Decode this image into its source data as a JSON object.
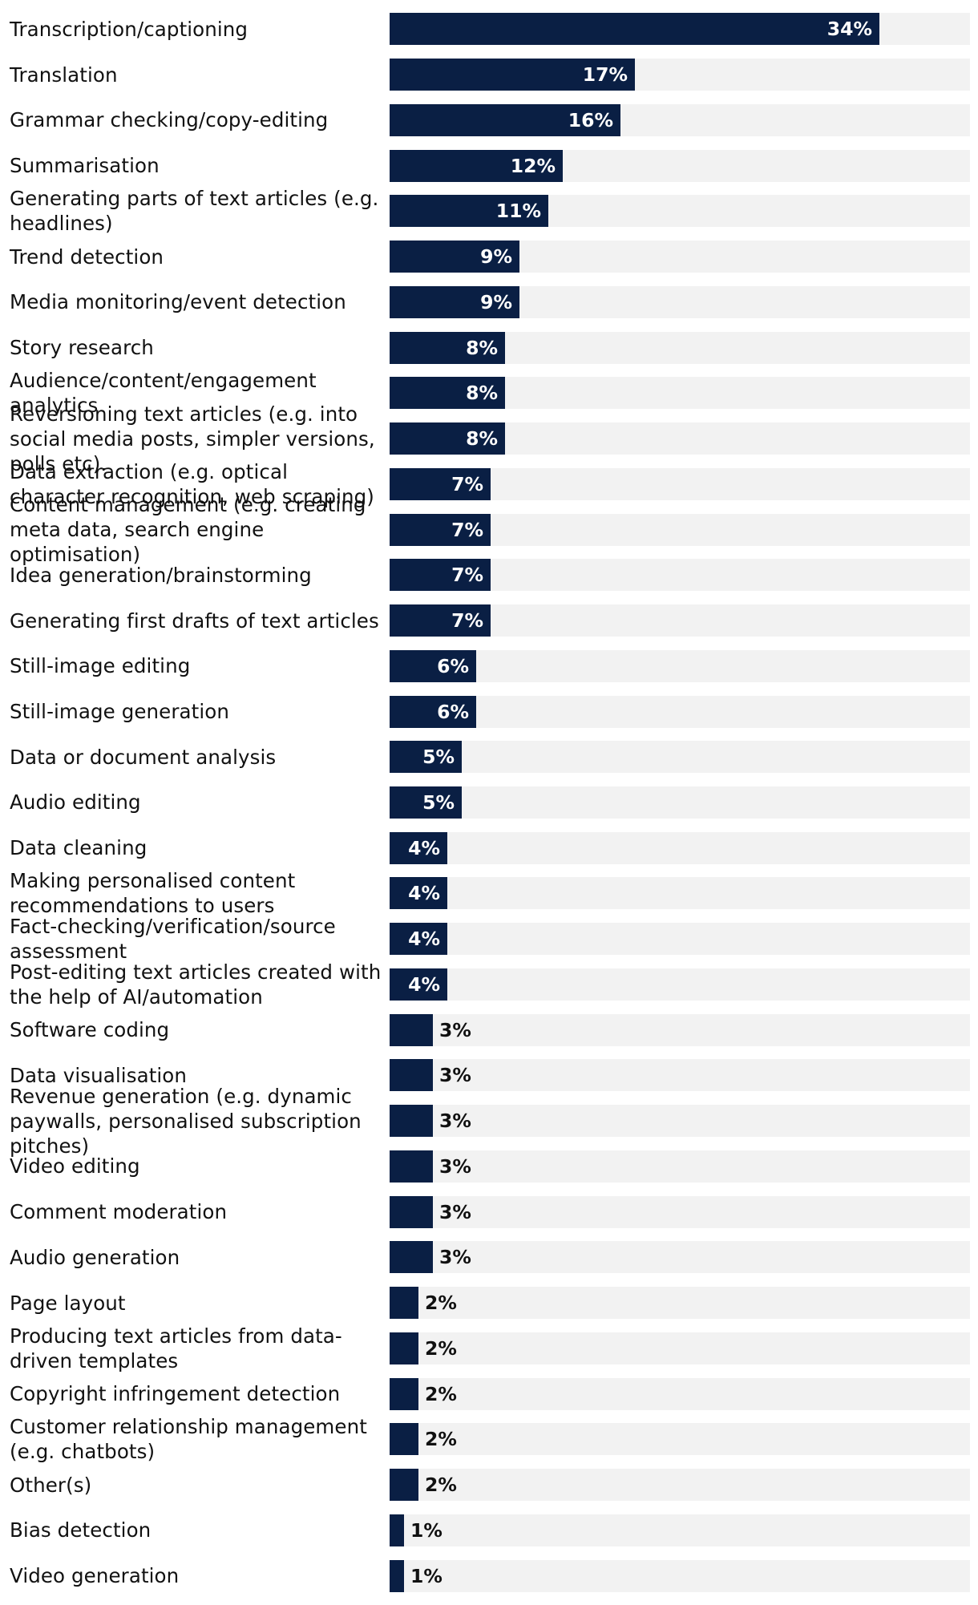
{
  "chart_data": {
    "type": "bar",
    "orientation": "horizontal",
    "bar_color": "#0a1f44",
    "track_color": "#f2f2f2",
    "xlim": [
      0,
      40
    ],
    "value_suffix": "%",
    "categories": [
      "Transcription/captioning",
      "Translation",
      "Grammar checking/copy-editing",
      "Summarisation",
      "Generating parts of text articles (e.g. headlines)",
      "Trend detection",
      "Media monitoring/event detection",
      "Story research",
      "Audience/content/engagement analytics",
      "Reversioning text articles (e.g. into social media posts, simpler versions, polls etc).",
      "Data extraction (e.g. optical character recognition, web scraping)",
      "Content management (e.g. creating meta data, search engine optimisation)",
      "Idea generation/brainstorming",
      "Generating first drafts of text articles",
      "Still-image editing",
      "Still-image generation",
      "Data or document analysis",
      "Audio editing",
      "Data cleaning",
      "Making personalised content recommendations to users",
      "Fact-checking/verification/source assessment",
      "Post-editing text articles created with the help of AI/automation",
      "Software coding",
      "Data visualisation",
      "Revenue generation (e.g. dynamic paywalls, personalised subscription pitches)",
      "Video editing",
      "Comment moderation",
      "Audio generation",
      "Page layout",
      "Producing text articles from data-driven templates",
      "Copyright infringement detection",
      "Customer relationship management (e.g. chatbots)",
      "Other(s)",
      "Bias detection",
      "Video generation"
    ],
    "values": [
      34,
      17,
      16,
      12,
      11,
      9,
      9,
      8,
      8,
      8,
      7,
      7,
      7,
      7,
      6,
      6,
      5,
      5,
      4,
      4,
      4,
      4,
      3,
      3,
      3,
      3,
      3,
      3,
      2,
      2,
      2,
      2,
      2,
      1,
      1
    ],
    "labels": [
      "34%",
      "17%",
      "16%",
      "12%",
      "11%",
      "9%",
      "9%",
      "8%",
      "8%",
      "8%",
      "7%",
      "7%",
      "7%",
      "7%",
      "6%",
      "6%",
      "5%",
      "5%",
      "4%",
      "4%",
      "4%",
      "4%",
      "3%",
      "3%",
      "3%",
      "3%",
      "3%",
      "3%",
      "2%",
      "2%",
      "2%",
      "2%",
      "2%",
      "1%",
      "1%"
    ]
  }
}
